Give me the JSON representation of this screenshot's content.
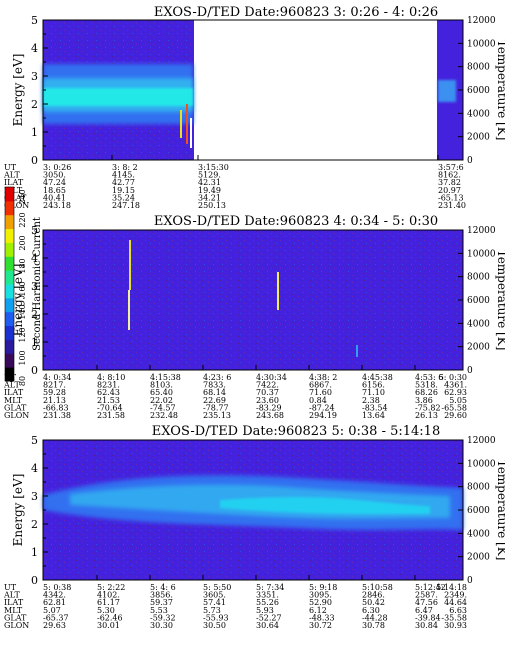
{
  "colorbar": {
    "label": "Second Harmonic Current",
    "ticks": [
      "240",
      "220",
      "200",
      "180",
      "160",
      "140",
      "120",
      "100",
      "80"
    ],
    "colors": [
      "#000000",
      "#3a0a5a",
      "#2a1aa0",
      "#1a30d0",
      "#1f5cf0",
      "#10a0f0",
      "#18e0e0",
      "#20e890",
      "#30e030",
      "#a0f000",
      "#f0f000",
      "#f0a000",
      "#f03000",
      "#e00000"
    ]
  },
  "colors": {
    "background_blue": "#4422dd",
    "band_mid": "#3070f0",
    "band_core": "#20e8e8",
    "band_light": "#30a8f0"
  },
  "panels": [
    {
      "id": "p1",
      "title": "EXOS-D/TED   Date:960823  3: 0:26 - 4: 0:26",
      "ylabel": "Energy [eV]",
      "y2label": "Temperature [K]",
      "yticks": [
        "5",
        "4",
        "3",
        "2",
        "1",
        "0"
      ],
      "y2ticks": [
        "12000",
        "10000",
        "8000",
        "6000",
        "4000",
        "2000",
        "0"
      ],
      "orbit_labels": [
        "UT",
        "ALT",
        "ILAT",
        "MLT",
        "GLAT",
        "GLON"
      ],
      "orbit_columns": [
        [
          "3: 0:26",
          "3050.",
          "47.24",
          "18.65",
          "40.41",
          "243.18"
        ],
        [
          "3: 8: 2",
          "4145.",
          "42.77",
          "19.15",
          "35.24",
          "247.18"
        ],
        [
          "3:15:30",
          "5129.",
          "42.31",
          "19.49",
          "34.21",
          "250.13"
        ],
        [
          "3:57:6",
          "8162.",
          "37.82",
          "20.97",
          "-65.13",
          "231.40"
        ]
      ]
    },
    {
      "id": "p2",
      "title": "EXOS-D/TED   Date:960823  4: 0:34 - 5: 0:30",
      "ylabel": "Energy [eV]",
      "y2label": "Temperature [K]",
      "yticks": [
        "5",
        "4",
        "3",
        "2",
        "1",
        "0"
      ],
      "y2ticks": [
        "12000",
        "10000",
        "8000",
        "6000",
        "4000",
        "2000",
        "0"
      ],
      "orbit_labels": [
        "UT",
        "ALT",
        "ILAT",
        "MLT",
        "GLAT",
        "GLON"
      ],
      "orbit_columns": [
        [
          "4: 0:34",
          "8217.",
          "59.28",
          "21.13",
          "-66.83",
          "231.38"
        ],
        [
          "4: 8:10",
          "8231.",
          "62.43",
          "21.53",
          "-70.64",
          "231.58"
        ],
        [
          "4:15:38",
          "8103.",
          "65.40",
          "22.02",
          "-74.57",
          "232.48"
        ],
        [
          "4:23: 6",
          "7833.",
          "68.14",
          "22.69",
          "-78.77",
          "235.13"
        ],
        [
          "4:30:34",
          "7422.",
          "70.37",
          "23.60",
          "-83.29",
          "243.68"
        ],
        [
          "4:38: 2",
          "6867.",
          "71.60",
          "0.84",
          "-87.24",
          "294.19"
        ],
        [
          "4:45:38",
          "6156.",
          "71.10",
          "2.38",
          "-83.54",
          "13.64"
        ],
        [
          "4:53: 6",
          "5318.",
          "68.26",
          "3.86",
          "-75.82",
          "26.13"
        ],
        [
          "5: 0:30",
          "4361.",
          "62.93",
          "5.05",
          "-65.58",
          "29.60"
        ]
      ]
    },
    {
      "id": "p3",
      "title": "EXOS-D/TED   Date:960823  5: 0:38 - 5:14:18",
      "ylabel": "Energy [eV]",
      "y2label": "Temperature [K]",
      "yticks": [
        "5",
        "4",
        "3",
        "2",
        "1",
        "0"
      ],
      "y2ticks": [
        "12000",
        "10000",
        "8000",
        "6000",
        "4000",
        "2000",
        "0"
      ],
      "orbit_labels": [
        "UT",
        "ALT",
        "ILAT",
        "MLT",
        "GLAT",
        "GLON"
      ],
      "orbit_columns": [
        [
          "5: 0:38",
          "4342.",
          "62.81",
          "5.07",
          "-65.37",
          "29.63"
        ],
        [
          "5: 2:22",
          "4102.",
          "61.17",
          "5.30",
          "-62.46",
          "30.01"
        ],
        [
          "5: 4: 6",
          "3856.",
          "59.37",
          "5.53",
          "-59.32",
          "30.30"
        ],
        [
          "5: 5:50",
          "3605.",
          "57.41",
          "5.73",
          "-55.93",
          "30.50"
        ],
        [
          "5: 7:34",
          "3351.",
          "55.26",
          "5.93",
          "-52.27",
          "30.64"
        ],
        [
          "5: 9:18",
          "3095.",
          "52.90",
          "6.12",
          "-48.33",
          "30.72"
        ],
        [
          "5:10:58",
          "2846.",
          "50.42",
          "6.30",
          "-44.28",
          "30.78"
        ],
        [
          "5:12:42",
          "2587.",
          "47.56",
          "6.47",
          "-39.84",
          "30.84"
        ],
        [
          "5:14:18",
          "2349.",
          "44.64",
          "6.63",
          "-35.58",
          "30.93"
        ]
      ]
    }
  ],
  "chart_data": [
    {
      "type": "heatmap",
      "title": "EXOS-D/TED   Date:960823  3: 0:26 - 4: 0:26",
      "xlabel": "",
      "ylabel": "Energy [eV]",
      "y2label": "Temperature [K]",
      "ylim": [
        0,
        5
      ],
      "y2lim": [
        0,
        12000
      ],
      "x_ticks": [
        "3: 0:26",
        "3: 8: 2",
        "3:15:30",
        "3:57:6"
      ],
      "data_gap": [
        "3:15:30",
        "3:57:6"
      ],
      "colorbar_label": "Second Harmonic Current",
      "colorbar_range": [
        80,
        240
      ]
    },
    {
      "type": "heatmap",
      "title": "EXOS-D/TED   Date:960823  4: 0:34 - 5: 0:30",
      "xlabel": "",
      "ylabel": "Energy [eV]",
      "y2label": "Temperature [K]",
      "ylim": [
        0,
        5
      ],
      "y2lim": [
        0,
        12000
      ],
      "x_ticks": [
        "4: 0:34",
        "4: 8:10",
        "4:15:38",
        "4:23: 6",
        "4:30:34",
        "4:38: 2",
        "4:45:38",
        "4:53: 6",
        "5: 0:30"
      ],
      "colorbar_label": "Second Harmonic Current",
      "colorbar_range": [
        80,
        240
      ]
    },
    {
      "type": "heatmap",
      "title": "EXOS-D/TED   Date:960823  5: 0:38 - 5:14:18",
      "xlabel": "",
      "ylabel": "Energy [eV]",
      "y2label": "Temperature [K]",
      "ylim": [
        0,
        5
      ],
      "y2lim": [
        0,
        12000
      ],
      "x_ticks": [
        "5: 0:38",
        "5: 2:22",
        "5: 4: 6",
        "5: 5:50",
        "5: 7:34",
        "5: 9:18",
        "5:10:58",
        "5:12:42",
        "5:14:18"
      ],
      "colorbar_label": "Second Harmonic Current",
      "colorbar_range": [
        80,
        240
      ]
    }
  ]
}
